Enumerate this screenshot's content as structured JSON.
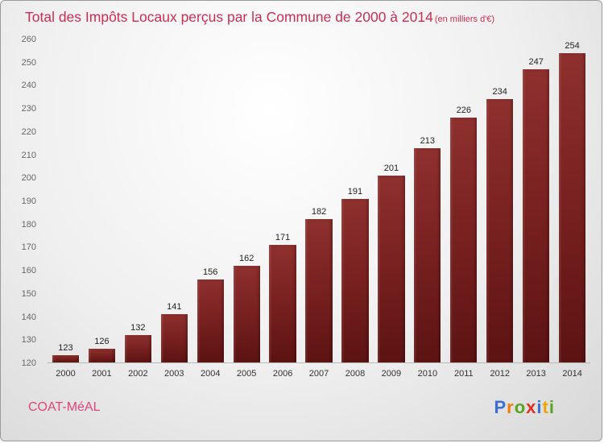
{
  "header": {
    "title": "Total des Impôts Locaux perçus par la Commune de 2000 à 2014",
    "subtitle": "(en milliers d'€)"
  },
  "chart_data": {
    "type": "bar",
    "title": "Total des Impôts Locaux perçus par la Commune de 2000 à 2014",
    "unit": "en milliers d'€",
    "categories": [
      "2000",
      "2001",
      "2002",
      "2003",
      "2004",
      "2005",
      "2006",
      "2007",
      "2008",
      "2009",
      "2010",
      "2011",
      "2012",
      "2013",
      "2014"
    ],
    "values": [
      123,
      126,
      132,
      141,
      156,
      162,
      171,
      182,
      191,
      201,
      213,
      226,
      234,
      247,
      254
    ],
    "xlabel": "",
    "ylabel": "",
    "ylim": [
      120,
      260
    ],
    "ytick_step": 10,
    "grid": false,
    "legend": false,
    "bar_color": "#7a2221",
    "title_color": "#cb2e55"
  },
  "footer": {
    "commune": "COAT-MéAL",
    "logo_letters": [
      {
        "char": "P",
        "color": "#3b6fd4"
      },
      {
        "char": "r",
        "color": "#f07d0a"
      },
      {
        "char": "o",
        "color": "#58a420"
      },
      {
        "char": "x",
        "color": "#e03020"
      },
      {
        "char": "i",
        "color": "#3b6fd4"
      },
      {
        "char": "t",
        "color": "#f0a40a"
      },
      {
        "char": "i",
        "color": "#58a420"
      }
    ]
  }
}
